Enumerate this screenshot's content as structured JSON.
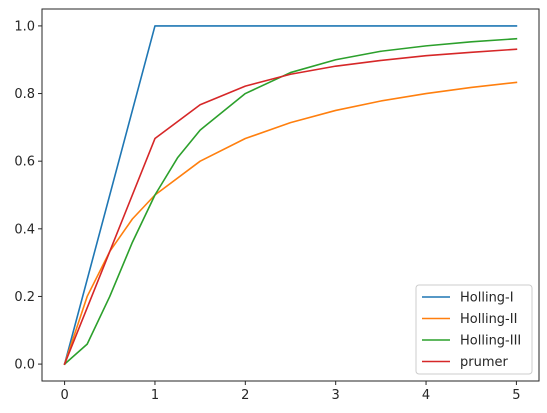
{
  "chart_data": {
    "type": "line",
    "xlim": [
      -0.25,
      5.25
    ],
    "ylim": [
      -0.05,
      1.05
    ],
    "xticks": [
      "0",
      "1",
      "2",
      "3",
      "4",
      "5"
    ],
    "yticks": [
      "0.0",
      "0.2",
      "0.4",
      "0.6",
      "0.8",
      "1.0"
    ],
    "grid": false,
    "legend_position": "bottom-right",
    "series": [
      {
        "name": "Holling-I",
        "color": "#1f77b4",
        "x": [
          0,
          1,
          5
        ],
        "y": [
          0,
          1,
          1
        ]
      },
      {
        "name": "Holling-II",
        "color": "#ff7f0e",
        "x": [
          0,
          0.25,
          0.5,
          0.75,
          1,
          1.5,
          2,
          2.5,
          3,
          3.5,
          4,
          4.5,
          5
        ],
        "y": [
          0,
          0.2,
          0.333,
          0.429,
          0.5,
          0.6,
          0.667,
          0.714,
          0.75,
          0.778,
          0.8,
          0.818,
          0.833
        ]
      },
      {
        "name": "Holling-III",
        "color": "#2ca02c",
        "x": [
          0,
          0.25,
          0.5,
          0.75,
          1,
          1.25,
          1.5,
          2,
          2.5,
          3,
          3.5,
          4,
          4.5,
          5
        ],
        "y": [
          0,
          0.059,
          0.2,
          0.36,
          0.5,
          0.61,
          0.692,
          0.8,
          0.862,
          0.9,
          0.925,
          0.941,
          0.953,
          0.962
        ]
      },
      {
        "name": "prumer",
        "color": "#d62728",
        "x": [
          0,
          0.5,
          1,
          1.5,
          2,
          2.5,
          3,
          3.5,
          4,
          4.5,
          5
        ],
        "y": [
          0,
          0.333,
          0.667,
          0.767,
          0.822,
          0.857,
          0.881,
          0.898,
          0.912,
          0.922,
          0.931
        ]
      }
    ]
  }
}
